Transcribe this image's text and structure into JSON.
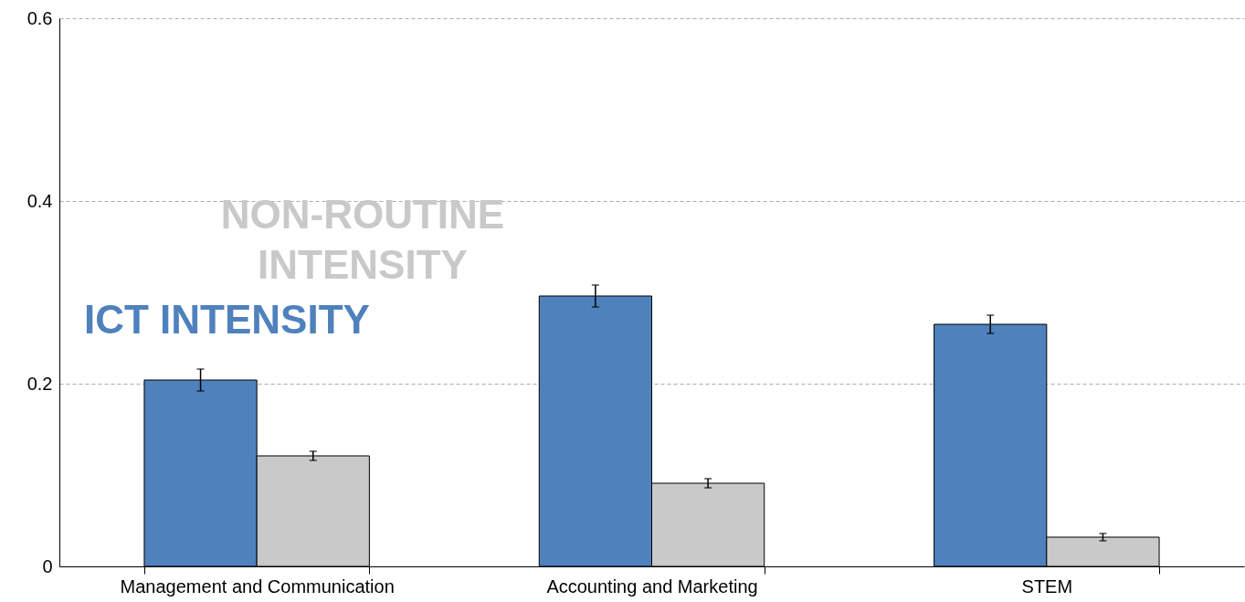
{
  "chart_data": {
    "type": "bar",
    "categories": [
      "Management and Communication",
      "Accounting and Marketing",
      "STEM"
    ],
    "series": [
      {
        "name": "ICT INTENSITY",
        "color": "#4f81bd",
        "values": [
          0.204,
          0.296,
          0.265
        ],
        "errors": [
          0.012,
          0.012,
          0.01
        ]
      },
      {
        "name": "NON-ROUTINE INTENSITY",
        "color": "#c9c9c9",
        "values": [
          0.121,
          0.091,
          0.032
        ],
        "errors": [
          0.005,
          0.005,
          0.004
        ]
      }
    ],
    "ylim": [
      0,
      0.6
    ],
    "yticks": [
      0,
      0.2,
      0.4,
      0.6
    ],
    "grid": "y"
  }
}
